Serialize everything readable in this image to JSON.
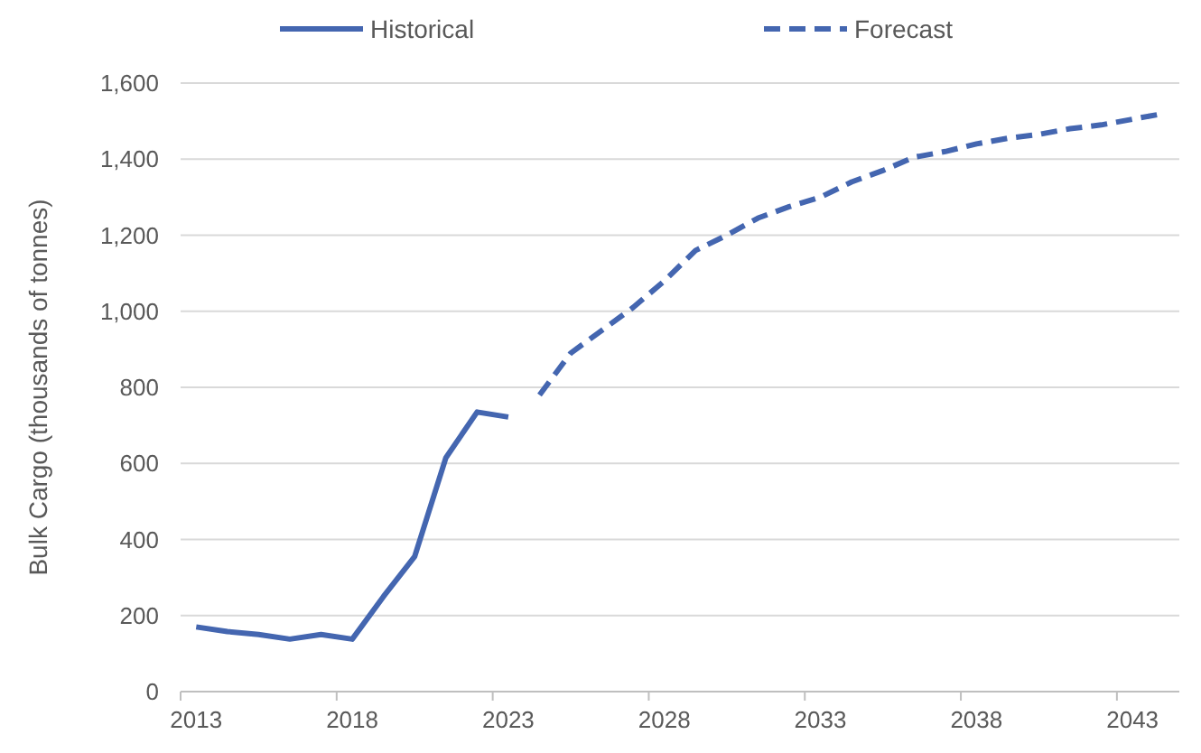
{
  "chart_data": {
    "type": "line",
    "ylabel": "Bulk Cargo (thousands of tonnes)",
    "xlim": [
      2012.5,
      2044.5
    ],
    "xticks": [
      2013,
      2018,
      2023,
      2028,
      2033,
      2038,
      2043
    ],
    "ylim": [
      0,
      1600
    ],
    "yticks": [
      {
        "value": 0,
        "label": "0"
      },
      {
        "value": 200,
        "label": "200"
      },
      {
        "value": 400,
        "label": "400"
      },
      {
        "value": 600,
        "label": "600"
      },
      {
        "value": 800,
        "label": "800"
      },
      {
        "value": 1000,
        "label": "1,000"
      },
      {
        "value": 1200,
        "label": "1,200"
      },
      {
        "value": 1400,
        "label": "1,400"
      },
      {
        "value": 1600,
        "label": "1,600"
      }
    ],
    "grid": "y",
    "legend": "top",
    "series": [
      {
        "name": "Historical",
        "color": "#4466b0",
        "line_style": "solid",
        "x": [
          2013,
          2014,
          2015,
          2016,
          2017,
          2018,
          2019,
          2020,
          2021,
          2022,
          2023
        ],
        "values": [
          170,
          158,
          150,
          138,
          150,
          138,
          250,
          355,
          615,
          735,
          722
        ]
      },
      {
        "name": "Forecast",
        "color": "#4466b0",
        "line_style": "dashed",
        "x": [
          2024,
          2025,
          2026,
          2027,
          2028,
          2029,
          2030,
          2031,
          2032,
          2033,
          2034,
          2035,
          2036,
          2037,
          2038,
          2039,
          2040,
          2041,
          2042,
          2043,
          2044
        ],
        "values": [
          780,
          890,
          950,
          1010,
          1080,
          1160,
          1200,
          1245,
          1275,
          1300,
          1340,
          1370,
          1405,
          1420,
          1440,
          1455,
          1465,
          1480,
          1490,
          1505,
          1520
        ]
      }
    ]
  }
}
